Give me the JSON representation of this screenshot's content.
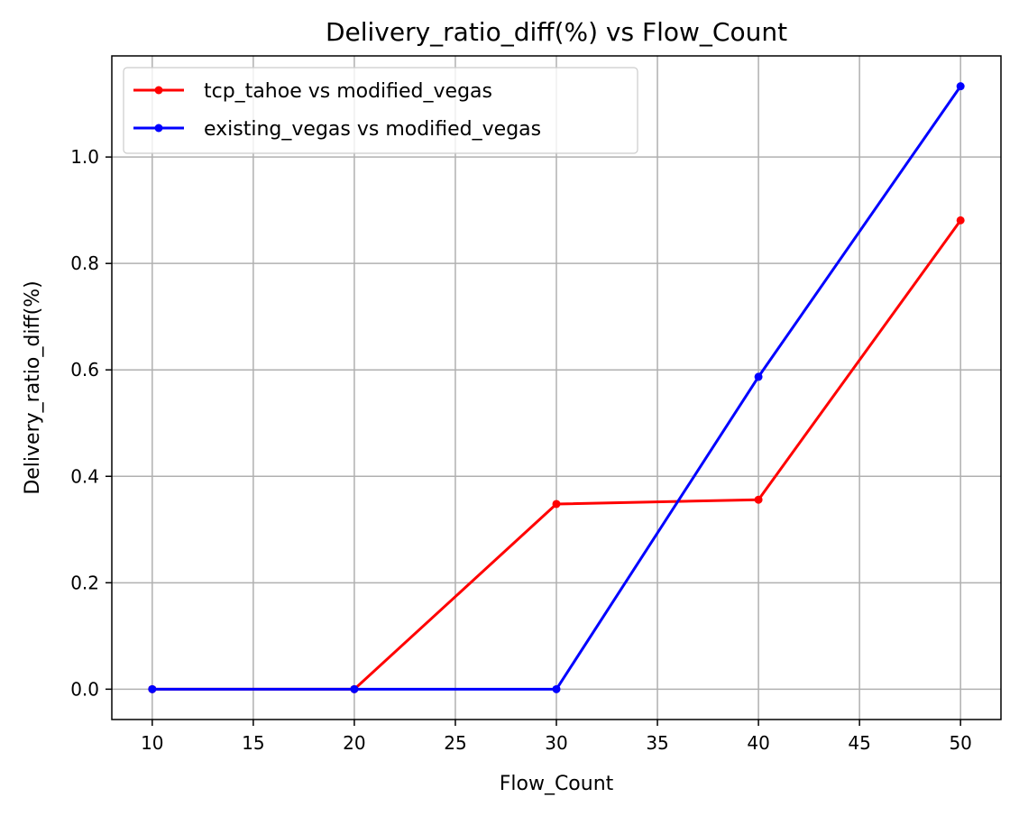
{
  "chart_data": {
    "type": "line",
    "title": "Delivery_ratio_diff(%) vs Flow_Count",
    "xlabel": "Flow_Count",
    "ylabel": "Delivery_ratio_diff(%)",
    "x": [
      10,
      20,
      30,
      40,
      50
    ],
    "xlim": [
      8,
      52
    ],
    "ylim": [
      -0.057,
      1.19
    ],
    "xticks": [
      10,
      15,
      20,
      25,
      30,
      35,
      40,
      45,
      50
    ],
    "yticks": [
      0.0,
      0.2,
      0.4,
      0.6,
      0.8,
      1.0
    ],
    "ytick_labels": [
      "0.0",
      "0.2",
      "0.4",
      "0.6",
      "0.8",
      "1.0"
    ],
    "grid": true,
    "legend_position": "top-left",
    "series": [
      {
        "name": "tcp_tahoe vs modified_vegas",
        "color": "#ff0000",
        "values": [
          0.0,
          0.0,
          0.348,
          0.356,
          0.881
        ]
      },
      {
        "name": "existing_vegas vs modified_vegas",
        "color": "#0000ff",
        "values": [
          0.0,
          0.0,
          0.0,
          0.587,
          1.133
        ]
      }
    ]
  }
}
